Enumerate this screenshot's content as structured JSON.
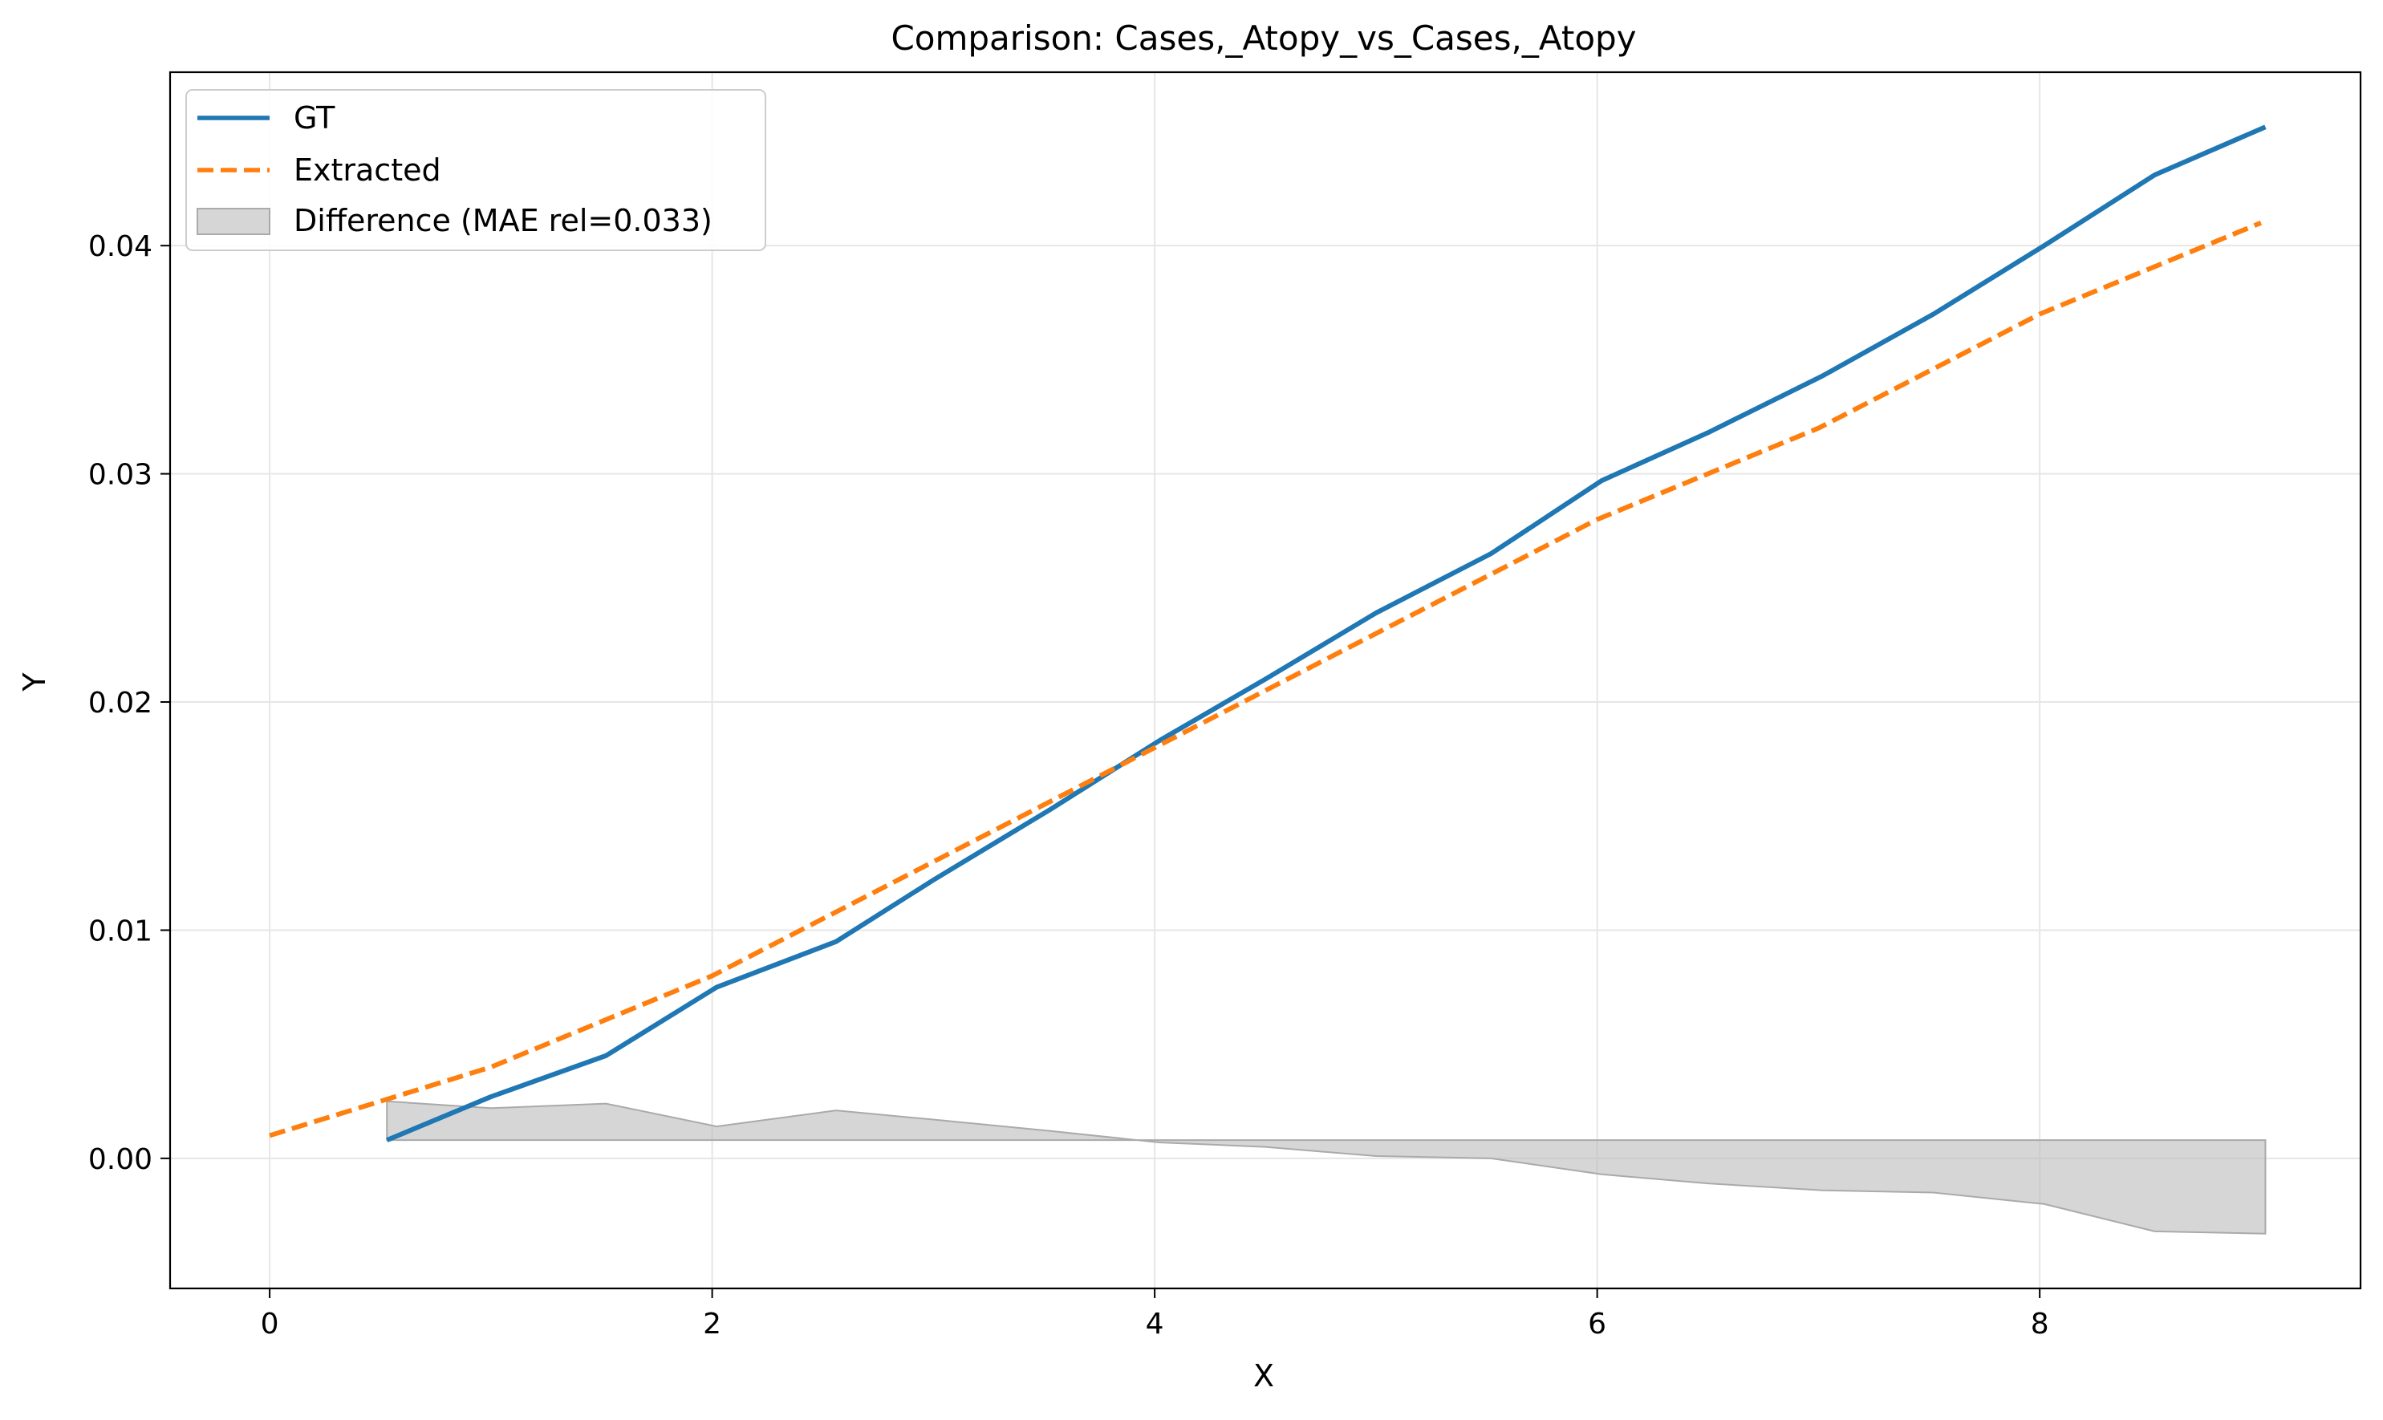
{
  "chart_data": {
    "type": "line",
    "title": "Comparison: Cases,_Atopy_vs_Cases,_Atopy",
    "xlabel": "X",
    "ylabel": "Y",
    "xlim": [
      -0.45,
      9.45
    ],
    "ylim": [
      -0.0057,
      0.0476
    ],
    "x_ticks": [
      0,
      2,
      4,
      6,
      8
    ],
    "y_ticks": [
      0.0,
      0.01,
      0.02,
      0.03,
      0.04
    ],
    "x_tick_labels": [
      "0",
      "2",
      "4",
      "6",
      "8"
    ],
    "y_tick_labels": [
      "0.00",
      "0.01",
      "0.02",
      "0.03",
      "0.04"
    ],
    "grid": true,
    "legend_position": "top-left",
    "series": [
      {
        "name": "GT",
        "color": "#1f77b4",
        "style": "solid",
        "x": [
          0.53,
          1.0,
          1.52,
          2.02,
          2.56,
          3.0,
          3.53,
          4.02,
          4.5,
          5.0,
          5.52,
          6.02,
          6.5,
          7.02,
          7.52,
          8.02,
          8.52,
          9.02
        ],
        "y": [
          0.0008,
          0.0027,
          0.0045,
          0.0075,
          0.0095,
          0.0122,
          0.0153,
          0.0183,
          0.021,
          0.0239,
          0.0265,
          0.0297,
          0.0318,
          0.0343,
          0.037,
          0.04,
          0.0431,
          0.0452
        ]
      },
      {
        "name": "Extracted",
        "color": "#ff7f0e",
        "style": "dashed",
        "x": [
          0.0,
          0.5,
          1.0,
          1.5,
          2.0,
          2.5,
          3.0,
          3.5,
          4.0,
          4.5,
          5.0,
          5.5,
          6.0,
          6.5,
          7.0,
          7.5,
          8.0,
          8.5,
          9.0
        ],
        "y": [
          0.001,
          0.0025,
          0.004,
          0.006,
          0.008,
          0.0105,
          0.013,
          0.0155,
          0.018,
          0.0205,
          0.023,
          0.0255,
          0.028,
          0.03,
          0.032,
          0.0345,
          0.037,
          0.039,
          0.041
        ]
      }
    ],
    "difference": {
      "name": "Difference (MAE rel=0.033)",
      "color": "#bbbbbb",
      "baseline": 0.0008,
      "x": [
        0.53,
        1.0,
        1.52,
        2.02,
        2.56,
        3.0,
        3.53,
        4.02,
        4.5,
        5.0,
        5.52,
        6.02,
        6.5,
        7.02,
        7.52,
        8.02,
        8.52,
        9.02
      ],
      "y": [
        0.0025,
        0.0022,
        0.0024,
        0.0014,
        0.0021,
        0.0017,
        0.0012,
        0.0007,
        0.0005,
        0.0001,
        0.0,
        -0.0007,
        -0.0011,
        -0.0014,
        -0.0015,
        -0.002,
        -0.0032,
        -0.0033
      ]
    }
  }
}
